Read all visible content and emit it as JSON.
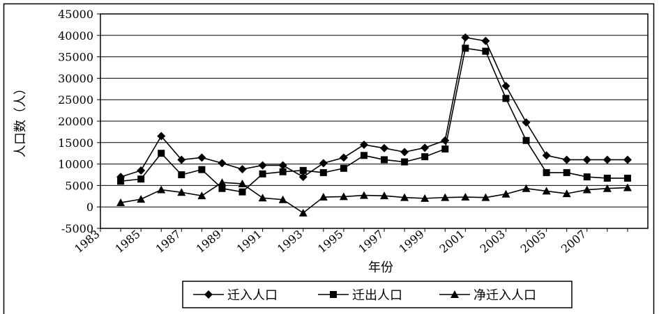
{
  "chart_data": {
    "type": "line",
    "title": "",
    "xlabel": "年份",
    "ylabel": "人口数（人）",
    "ylim": [
      -5000,
      45000
    ],
    "yticks": [
      45000,
      40000,
      35000,
      30000,
      25000,
      20000,
      15000,
      10000,
      5000,
      0,
      -5000
    ],
    "xticks": [
      "1983",
      "1985",
      "1987",
      "1989",
      "1991",
      "1993",
      "1995",
      "1997",
      "1999",
      "2001",
      "2003",
      "2005",
      "2007"
    ],
    "x": [
      1984,
      1985,
      1986,
      1987,
      1988,
      1989,
      1990,
      1991,
      1992,
      1993,
      1994,
      1995,
      1996,
      1997,
      1998,
      1999,
      2000,
      2001,
      2002,
      2003,
      2004,
      2005,
      2006,
      2007,
      2008,
      2009
    ],
    "grid": "horizontal",
    "legend_position": "bottom",
    "series": [
      {
        "name": "迁入人口",
        "marker": "diamond",
        "values": [
          7000,
          8500,
          16500,
          11000,
          11500,
          10200,
          8800,
          9700,
          9700,
          7000,
          10200,
          11500,
          14500,
          13700,
          12800,
          13800,
          15500,
          39500,
          38700,
          28200,
          19700,
          12000,
          11000,
          11000,
          11000,
          11000
        ]
      },
      {
        "name": "迁出人口",
        "marker": "square",
        "values": [
          6000,
          6500,
          12500,
          7500,
          8700,
          4300,
          3500,
          7700,
          8200,
          8500,
          8000,
          9000,
          12000,
          11000,
          10500,
          11700,
          13500,
          37000,
          36300,
          25300,
          15500,
          8000,
          8000,
          7000,
          6700,
          6700
        ]
      },
      {
        "name": "净迁入人口",
        "marker": "triangle",
        "values": [
          1000,
          1800,
          4000,
          3400,
          2600,
          5700,
          5400,
          2100,
          1700,
          -1400,
          2300,
          2400,
          2700,
          2600,
          2200,
          2000,
          2200,
          2300,
          2200,
          3000,
          4300,
          3700,
          3100,
          4000,
          4300,
          4500
        ]
      }
    ]
  }
}
